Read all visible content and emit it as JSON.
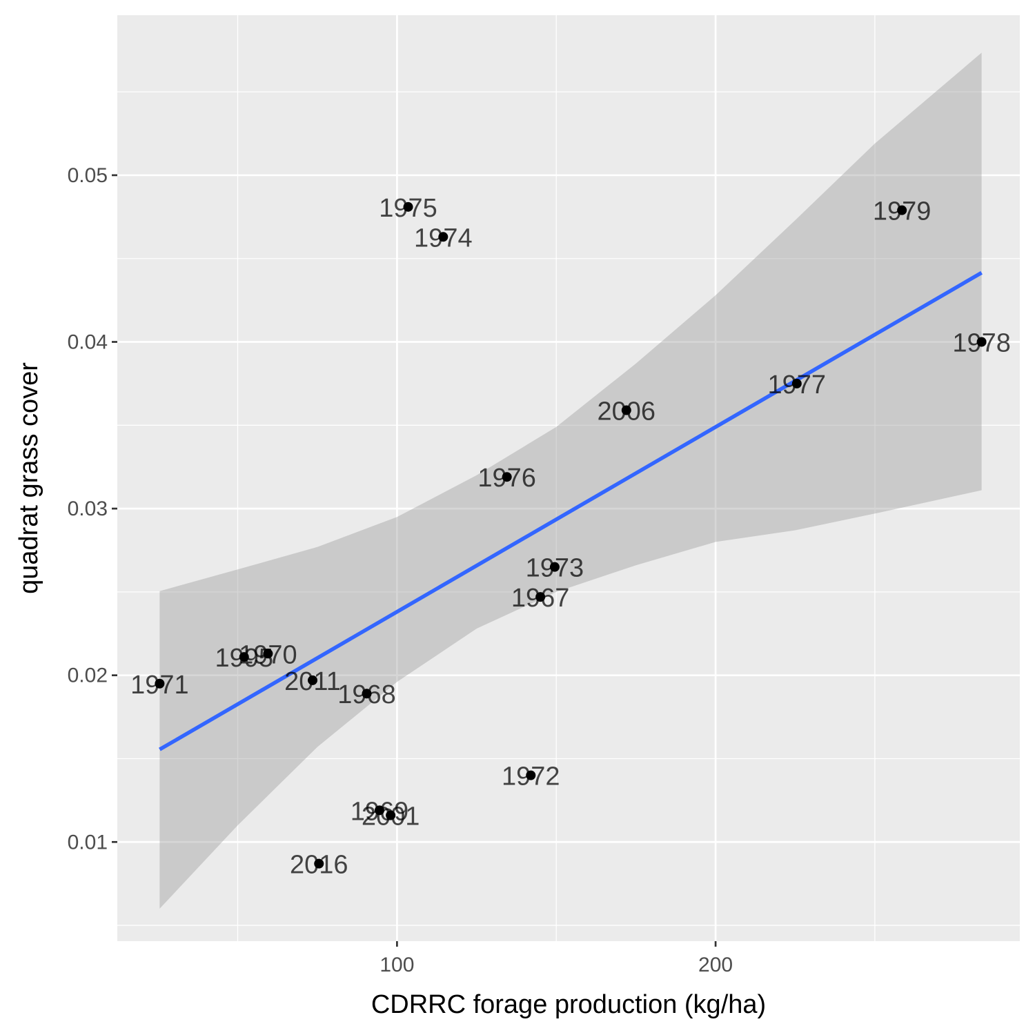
{
  "chart_data": {
    "type": "scatter",
    "xlabel": "CDRRC forage production (kg/ha)",
    "ylabel": "quadrat grass cover",
    "xlim": [
      12.2,
      295.5
    ],
    "ylim": [
      0.00405,
      0.0596
    ],
    "x_ticks": [
      100,
      200
    ],
    "x_tick_labels": [
      "100",
      "200"
    ],
    "x_minor_ticks": [
      50,
      150,
      250
    ],
    "y_ticks": [
      0.01,
      0.02,
      0.03,
      0.04,
      0.05
    ],
    "y_tick_labels": [
      "0.01",
      "0.02",
      "0.03",
      "0.04",
      "0.05"
    ],
    "y_minor_ticks": [
      0.005,
      0.015,
      0.025,
      0.035,
      0.045,
      0.055
    ],
    "grid": true,
    "legend": "none",
    "colors": {
      "panel": "#ebebeb",
      "grid": "#ffffff",
      "point": "#000000",
      "label": "#000000",
      "fit_line": "#3366ff",
      "ribbon": "#999999"
    },
    "points": [
      {
        "label": "1975",
        "x": 103.5,
        "y": 0.0481
      },
      {
        "label": "1974",
        "x": 114.5,
        "y": 0.0463
      },
      {
        "label": "1979",
        "x": 258.5,
        "y": 0.0479
      },
      {
        "label": "1978",
        "x": 283.5,
        "y": 0.04
      },
      {
        "label": "1977",
        "x": 225.5,
        "y": 0.0375
      },
      {
        "label": "2006",
        "x": 172.0,
        "y": 0.0359
      },
      {
        "label": "1976",
        "x": 134.5,
        "y": 0.0319
      },
      {
        "label": "1973",
        "x": 149.5,
        "y": 0.0265
      },
      {
        "label": "1967",
        "x": 145.0,
        "y": 0.0247
      },
      {
        "label": "1995",
        "x": 52.0,
        "y": 0.0211
      },
      {
        "label": "1970",
        "x": 59.5,
        "y": 0.0213
      },
      {
        "label": "2011",
        "x": 73.5,
        "y": 0.0197
      },
      {
        "label": "1971",
        "x": 25.5,
        "y": 0.0195
      },
      {
        "label": "1968",
        "x": 90.5,
        "y": 0.0189
      },
      {
        "label": "1972",
        "x": 142.0,
        "y": 0.014
      },
      {
        "label": "1969",
        "x": 94.5,
        "y": 0.0119
      },
      {
        "label": "2001",
        "x": 98.0,
        "y": 0.0116
      },
      {
        "label": "2016",
        "x": 75.5,
        "y": 0.0087
      }
    ],
    "fit": {
      "x": [
        25.5,
        283.5
      ],
      "y": [
        0.01555,
        0.04415
      ]
    },
    "confidence_band": {
      "x": [
        25.5,
        50,
        75,
        100,
        125,
        150,
        175,
        200,
        225,
        250,
        283.5
      ],
      "upper": [
        0.02505,
        0.02635,
        0.0277,
        0.0295,
        0.032,
        0.0349,
        0.0387,
        0.0428,
        0.0473,
        0.0519,
        0.05735
      ],
      "lower": [
        0.006,
        0.011,
        0.0157,
        0.0196,
        0.0228,
        0.025,
        0.0266,
        0.028,
        0.0287,
        0.0297,
        0.0311
      ]
    }
  }
}
